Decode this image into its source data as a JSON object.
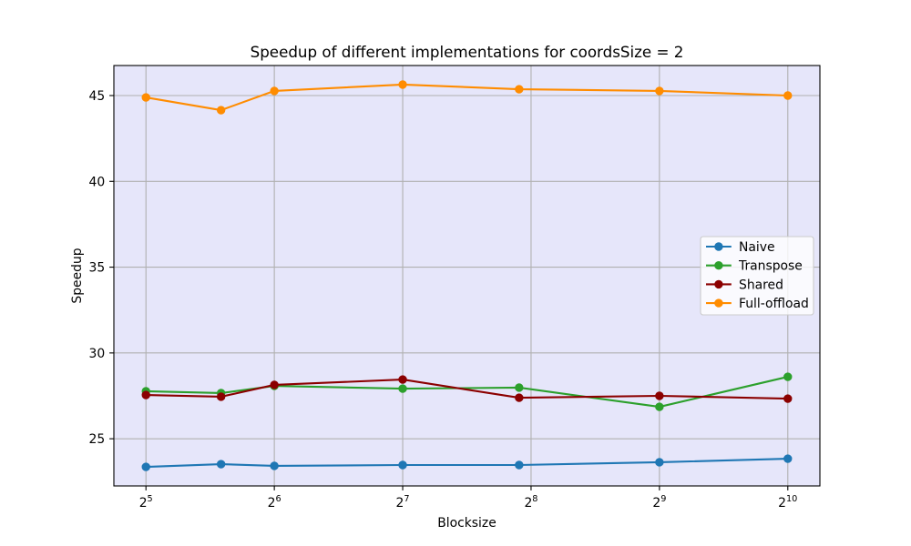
{
  "chart_data": {
    "type": "line",
    "title": "Speedup of different implementations for coordsSize = 2",
    "xlabel": "Blocksize",
    "ylabel": "Speedup",
    "x_scale": "log2",
    "x": [
      32,
      48,
      64,
      128,
      240,
      512,
      1024
    ],
    "xlim": [
      26.91,
      1217.75
    ],
    "ylim": [
      22.25,
      46.75
    ],
    "x_ticks": [
      {
        "base": "2",
        "exp": "5"
      },
      {
        "base": "2",
        "exp": "6"
      },
      {
        "base": "2",
        "exp": "7"
      },
      {
        "base": "2",
        "exp": "8"
      },
      {
        "base": "2",
        "exp": "9"
      },
      {
        "base": "2",
        "exp": "10"
      }
    ],
    "y_ticks": [
      "25",
      "30",
      "35",
      "40",
      "45"
    ],
    "grid": true,
    "grid_color": "#b0b0b0",
    "background": "#e6e6fa",
    "legend": "center right",
    "series": [
      {
        "name": "Naive",
        "color": "#1f77b4",
        "marker": "circle",
        "values": [
          23.36,
          23.52,
          23.42,
          23.47,
          23.47,
          23.63,
          23.84
        ]
      },
      {
        "name": "Transpose",
        "color": "#2ca02c",
        "marker": "circle",
        "values": [
          27.77,
          27.66,
          28.08,
          27.92,
          27.98,
          26.86,
          28.61
        ]
      },
      {
        "name": "Shared",
        "color": "#8b0000",
        "marker": "circle",
        "values": [
          27.55,
          27.45,
          28.14,
          28.45,
          27.39,
          27.5,
          27.34
        ]
      },
      {
        "name": "Full-offload",
        "color": "#ff8c00",
        "marker": "circle",
        "values": [
          44.89,
          44.15,
          45.27,
          45.64,
          45.37,
          45.27,
          45.0
        ]
      }
    ]
  }
}
